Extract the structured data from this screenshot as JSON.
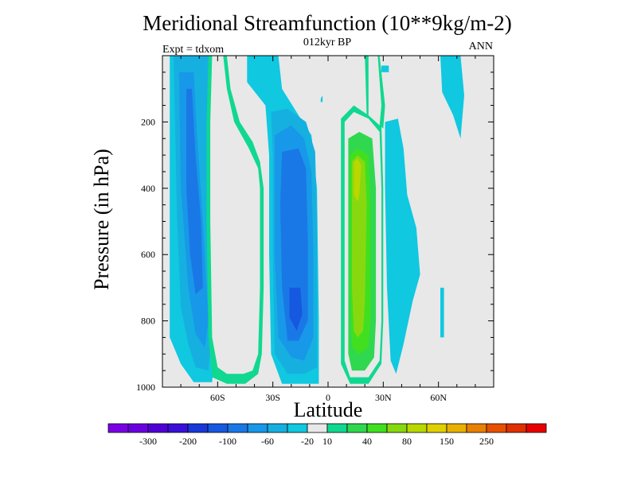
{
  "chart_data": {
    "type": "heatmap",
    "title": "Meridional Streamfunction (10**9kg/m-2)",
    "subtitle": "012kyr BP",
    "left_string": "Expt = tdxom",
    "right_string": "ANN",
    "xlabel": "Latitude",
    "ylabel": "Pressure (in hPa)",
    "x_range": [
      -90,
      90
    ],
    "y_range": [
      1000,
      0
    ],
    "x_tick_labels": [
      {
        "value": -60,
        "label": "60S"
      },
      {
        "value": -30,
        "label": "30S"
      },
      {
        "value": 0,
        "label": "0"
      },
      {
        "value": 30,
        "label": "30N"
      },
      {
        "value": 60,
        "label": "60N"
      }
    ],
    "y_tick_labels": [
      {
        "value": 200,
        "label": "200"
      },
      {
        "value": 400,
        "label": "400"
      },
      {
        "value": 600,
        "label": "600"
      },
      {
        "value": 800,
        "label": "800"
      },
      {
        "value": 1000,
        "label": "1000"
      }
    ],
    "colorbar": {
      "colors": [
        "#7a00e6",
        "#6a00e0",
        "#5000d6",
        "#3a10d8",
        "#1838d8",
        "#1658e0",
        "#1a78e6",
        "#1898e8",
        "#16b0e0",
        "#10c8e0",
        "#e8e8e8",
        "#10d890",
        "#30d850",
        "#40e020",
        "#88d810",
        "#b8d800",
        "#e0d000",
        "#e8b000",
        "#e88000",
        "#e85000",
        "#e03000",
        "#e80000"
      ],
      "labels": [
        "-300",
        "-200",
        "-100",
        "-60",
        "-20",
        "10",
        "40",
        "80",
        "150",
        "250"
      ],
      "label_after_box": [
        1,
        3,
        5,
        7,
        9,
        10,
        12,
        14,
        16,
        18
      ]
    },
    "contours": [
      {
        "level_index": 9,
        "polygons": [
          [
            [
              -86,
              0
            ],
            [
              -58,
              0
            ],
            [
              -57,
              250
            ],
            [
              -59,
              600
            ],
            [
              -61,
              840
            ],
            [
              -63,
              985
            ],
            [
              -73,
              985
            ],
            [
              -80,
              930
            ],
            [
              -86,
              850
            ]
          ],
          [
            [
              -44,
              0
            ],
            [
              -27,
              0
            ],
            [
              -25,
              100
            ],
            [
              -16,
              180
            ],
            [
              -9,
              240
            ],
            [
              -6,
              400
            ],
            [
              -5,
              800
            ],
            [
              -5,
              990
            ],
            [
              -12,
              990
            ],
            [
              -25,
              990
            ],
            [
              -31,
              900
            ],
            [
              -32,
              600
            ],
            [
              -32,
              300
            ],
            [
              -34,
              150
            ],
            [
              -44,
              80
            ]
          ],
          [
            [
              29,
              30
            ],
            [
              33,
              30
            ],
            [
              33,
              50
            ],
            [
              29,
              50
            ]
          ],
          [
            [
              31,
              200
            ],
            [
              38,
              190
            ],
            [
              41,
              280
            ],
            [
              43,
              420
            ],
            [
              48,
              520
            ],
            [
              50,
              660
            ],
            [
              46,
              740
            ],
            [
              41,
              870
            ],
            [
              37,
              960
            ],
            [
              34,
              920
            ],
            [
              32,
              700
            ],
            [
              31,
              400
            ]
          ],
          [
            [
              61,
              0
            ],
            [
              72,
              0
            ],
            [
              74,
              120
            ],
            [
              72,
              250
            ],
            [
              68,
              180
            ],
            [
              62,
              110
            ]
          ],
          [
            [
              61,
              700
            ],
            [
              63,
              700
            ],
            [
              63,
              850
            ],
            [
              61,
              850
            ]
          ],
          [
            [
              -4,
              130
            ],
            [
              -3,
              120
            ],
            [
              -3,
              140
            ],
            [
              -4,
              140
            ]
          ]
        ]
      },
      {
        "level_index": 8,
        "polygons": [
          [
            [
              -84,
              0
            ],
            [
              -62,
              0
            ],
            [
              -61,
              300
            ],
            [
              -62,
              600
            ],
            [
              -63,
              820
            ],
            [
              -65,
              950
            ],
            [
              -72,
              940
            ],
            [
              -76,
              870
            ],
            [
              -80,
              760
            ],
            [
              -82,
              500
            ]
          ],
          [
            [
              -31,
              170
            ],
            [
              -22,
              160
            ],
            [
              -12,
              200
            ],
            [
              -7,
              290
            ],
            [
              -6,
              500
            ],
            [
              -6,
              800
            ],
            [
              -6,
              940
            ],
            [
              -13,
              960
            ],
            [
              -22,
              960
            ],
            [
              -29,
              900
            ],
            [
              -30,
              600
            ],
            [
              -30,
              300
            ]
          ]
        ]
      },
      {
        "level_index": 7,
        "polygons": [
          [
            [
              -81,
              50
            ],
            [
              -73,
              50
            ],
            [
              -71,
              250
            ],
            [
              -68,
              500
            ],
            [
              -65,
              800
            ],
            [
              -67,
              880
            ],
            [
              -72,
              840
            ],
            [
              -76,
              700
            ],
            [
              -80,
              400
            ]
          ],
          [
            [
              -29,
              240
            ],
            [
              -20,
              210
            ],
            [
              -13,
              250
            ],
            [
              -9,
              350
            ],
            [
              -8,
              600
            ],
            [
              -8,
              850
            ],
            [
              -13,
              920
            ],
            [
              -20,
              910
            ],
            [
              -27,
              850
            ],
            [
              -29,
              600
            ],
            [
              -29,
              400
            ]
          ]
        ]
      },
      {
        "level_index": 6,
        "polygons": [
          [
            [
              -77,
              100
            ],
            [
              -74,
              100
            ],
            [
              -72,
              300
            ],
            [
              -69,
              500
            ],
            [
              -68,
              700
            ],
            [
              -72,
              720
            ],
            [
              -75,
              600
            ],
            [
              -77,
              400
            ]
          ],
          [
            [
              -25,
              290
            ],
            [
              -16,
              280
            ],
            [
              -12,
              340
            ],
            [
              -11,
              550
            ],
            [
              -11,
              800
            ],
            [
              -16,
              860
            ],
            [
              -22,
              860
            ],
            [
              -25,
              700
            ],
            [
              -26,
              450
            ]
          ]
        ]
      },
      {
        "level_index": 5,
        "polygons": [
          [
            [
              -21,
              700
            ],
            [
              -15,
              700
            ],
            [
              -14,
              780
            ],
            [
              -17,
              830
            ],
            [
              -21,
              790
            ]
          ]
        ]
      },
      {
        "level_index": 11,
        "polygons": [
          [
            [
              -65,
              0
            ],
            [
              -55,
              0
            ],
            [
              -53,
              100
            ],
            [
              -48,
              200
            ],
            [
              -41,
              260
            ],
            [
              -37,
              320
            ],
            [
              -35,
              400
            ],
            [
              -35,
              700
            ],
            [
              -36,
              900
            ],
            [
              -38,
              960
            ],
            [
              -45,
              990
            ],
            [
              -55,
              990
            ],
            [
              -63,
              970
            ],
            [
              -65,
              850
            ],
            [
              -66,
              500
            ],
            [
              -66,
              200
            ]
          ],
          [
            [
              20,
              0
            ],
            [
              28,
              0
            ],
            [
              31,
              150
            ],
            [
              30,
              220
            ],
            [
              28,
              210
            ],
            [
              24,
              190
            ],
            [
              21,
              180
            ]
          ],
          [
            [
              7,
              190
            ],
            [
              14,
              150
            ],
            [
              22,
              180
            ],
            [
              29,
              210
            ],
            [
              30,
              400
            ],
            [
              30,
              800
            ],
            [
              29,
              930
            ],
            [
              22,
              990
            ],
            [
              12,
              990
            ],
            [
              7,
              930
            ],
            [
              7,
              600
            ],
            [
              7,
              400
            ]
          ]
        ]
      },
      {
        "level_index": 10,
        "polygons": [
          [
            [
              -63,
              0
            ],
            [
              -57,
              0
            ],
            [
              -55,
              100
            ],
            [
              -51,
              200
            ],
            [
              -43,
              280
            ],
            [
              -38,
              340
            ],
            [
              -37,
              400
            ],
            [
              -37,
              700
            ],
            [
              -38,
              900
            ],
            [
              -41,
              950
            ],
            [
              -46,
              960
            ],
            [
              -55,
              960
            ],
            [
              -60,
              940
            ],
            [
              -63,
              850
            ],
            [
              -64,
              500
            ],
            [
              -64,
              200
            ]
          ],
          [
            [
              22,
              0
            ],
            [
              27,
              0
            ],
            [
              29,
              150
            ],
            [
              28,
              210
            ],
            [
              24,
              190
            ],
            [
              22,
              180
            ]
          ],
          [
            [
              9,
              200
            ],
            [
              14,
              170
            ],
            [
              22,
              190
            ],
            [
              28,
              230
            ],
            [
              29,
              400
            ],
            [
              29,
              800
            ],
            [
              28,
              920
            ],
            [
              22,
              970
            ],
            [
              12,
              970
            ],
            [
              9,
              920
            ],
            [
              9,
              600
            ],
            [
              9,
              400
            ]
          ]
        ]
      },
      {
        "level_index": 12,
        "polygons": [
          [
            [
              11,
              250
            ],
            [
              17,
              230
            ],
            [
              24,
              250
            ],
            [
              26,
              400
            ],
            [
              26,
              800
            ],
            [
              25,
              910
            ],
            [
              20,
              950
            ],
            [
              13,
              950
            ],
            [
              11,
              900
            ],
            [
              11,
              600
            ]
          ]
        ]
      },
      {
        "level_index": 13,
        "polygons": [
          [
            [
              12,
              300
            ],
            [
              16,
              280
            ],
            [
              22,
              300
            ],
            [
              23,
              450
            ],
            [
              23,
              800
            ],
            [
              22,
              880
            ],
            [
              17,
              900
            ],
            [
              13,
              880
            ],
            [
              12,
              700
            ],
            [
              12,
              500
            ]
          ]
        ]
      },
      {
        "level_index": 14,
        "polygons": [
          [
            [
              13,
              320
            ],
            [
              16,
              300
            ],
            [
              20,
              320
            ],
            [
              21,
              450
            ],
            [
              20,
              750
            ],
            [
              19,
              830
            ],
            [
              16,
              850
            ],
            [
              14,
              830
            ],
            [
              13,
              700
            ],
            [
              13,
              480
            ]
          ]
        ]
      },
      {
        "level_index": 15,
        "polygons": [
          [
            [
              14,
              320
            ],
            [
              16,
              310
            ],
            [
              18,
              330
            ],
            [
              17,
              420
            ],
            [
              16,
              440
            ],
            [
              14,
              420
            ]
          ]
        ]
      }
    ]
  }
}
